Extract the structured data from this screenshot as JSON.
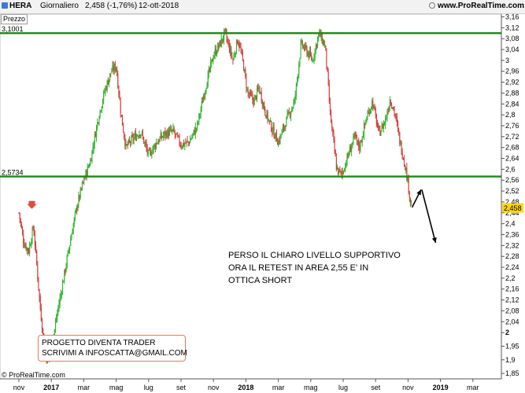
{
  "header": {
    "symbol": "HERA",
    "period": "Giornaliero",
    "quote": "2,458 (-1,76%)",
    "date": "12-ott-2018",
    "site": "www.ProRealTime.com"
  },
  "pane_label": "Prezzo",
  "copyright": "© ProRealTime.com",
  "annotation_main": [
    "PERSO IL CHIARO LIVELLO SUPPORTIVO",
    "ORA IL RETEST IN AREA 2,55 E' IN",
    "OTTICA SHORT"
  ],
  "annotation_box": [
    "PROGETTO DIVENTA TRADER",
    "SCRIVIMI A INFOSCATTA@GMAIL.COM"
  ],
  "colors": {
    "up": "#2db52d",
    "down": "#d0403b",
    "level": "#1a8a1a",
    "price_tag": "#ffd700"
  },
  "chart_data": {
    "type": "candlestick",
    "title": "",
    "y_range": [
      1.83,
      3.17
    ],
    "y_ticks": [
      {
        "v": 3.16,
        "l": "3,16"
      },
      {
        "v": 3.12,
        "l": "3,12"
      },
      {
        "v": 3.08,
        "l": "3,08"
      },
      {
        "v": 3.04,
        "l": "3,04"
      },
      {
        "v": 3.0,
        "l": "3"
      },
      {
        "v": 2.96,
        "l": "2,96"
      },
      {
        "v": 2.92,
        "l": "2,92"
      },
      {
        "v": 2.88,
        "l": "2,88"
      },
      {
        "v": 2.84,
        "l": "2,84"
      },
      {
        "v": 2.8,
        "l": "2,8"
      },
      {
        "v": 2.76,
        "l": "2,76"
      },
      {
        "v": 2.72,
        "l": "2,72"
      },
      {
        "v": 2.68,
        "l": "2,68"
      },
      {
        "v": 2.64,
        "l": "2,64"
      },
      {
        "v": 2.6,
        "l": "2,6"
      },
      {
        "v": 2.56,
        "l": "2,56"
      },
      {
        "v": 2.52,
        "l": "2,52"
      },
      {
        "v": 2.48,
        "l": "2,48"
      },
      {
        "v": 2.44,
        "l": "2,44"
      },
      {
        "v": 2.4,
        "l": "2,4"
      },
      {
        "v": 2.36,
        "l": "2,36"
      },
      {
        "v": 2.32,
        "l": "2,32"
      },
      {
        "v": 2.28,
        "l": "2,28"
      },
      {
        "v": 2.24,
        "l": "2,24"
      },
      {
        "v": 2.2,
        "l": "2,2"
      },
      {
        "v": 2.16,
        "l": "2,16"
      },
      {
        "v": 2.12,
        "l": "2,12"
      },
      {
        "v": 2.08,
        "l": "2,08"
      },
      {
        "v": 2.04,
        "l": "2,04"
      },
      {
        "v": 2.0,
        "l": "2"
      },
      {
        "v": 1.95,
        "l": "1,95"
      },
      {
        "v": 1.9,
        "l": "1,9"
      },
      {
        "v": 1.85,
        "l": "1,85"
      }
    ],
    "x_ticks": [
      {
        "m": 0,
        "l": "nov"
      },
      {
        "m": 2,
        "l": "2017",
        "bold": true
      },
      {
        "m": 4,
        "l": "mar"
      },
      {
        "m": 6,
        "l": "mag"
      },
      {
        "m": 8,
        "l": "lug"
      },
      {
        "m": 10,
        "l": "set"
      },
      {
        "m": 12,
        "l": "nov"
      },
      {
        "m": 14,
        "l": "2018",
        "bold": true
      },
      {
        "m": 16,
        "l": "mar"
      },
      {
        "m": 18,
        "l": "mag"
      },
      {
        "m": 20,
        "l": "lug"
      },
      {
        "m": 22,
        "l": "set"
      },
      {
        "m": 24,
        "l": "nov"
      },
      {
        "m": 26,
        "l": "2019",
        "bold": true
      },
      {
        "m": 28,
        "l": "mar"
      }
    ],
    "levels": [
      {
        "value": 3.1001,
        "label": "3,1001"
      },
      {
        "value": 2.5734,
        "label": "2,5734"
      }
    ],
    "last_price": {
      "value": 2.458,
      "label": "2,458"
    },
    "path": [
      [
        0,
        2.44
      ],
      [
        0.3,
        2.33
      ],
      [
        0.6,
        2.3
      ],
      [
        0.9,
        2.39
      ],
      [
        1.1,
        2.25
      ],
      [
        1.3,
        2.1
      ],
      [
        1.55,
        1.96
      ],
      [
        1.75,
        1.89
      ],
      [
        2.0,
        1.93
      ],
      [
        2.3,
        2.05
      ],
      [
        2.7,
        2.18
      ],
      [
        3.0,
        2.28
      ],
      [
        3.3,
        2.38
      ],
      [
        3.6,
        2.47
      ],
      [
        4.0,
        2.56
      ],
      [
        4.4,
        2.63
      ],
      [
        4.9,
        2.79
      ],
      [
        5.3,
        2.89
      ],
      [
        5.7,
        2.96
      ],
      [
        6.0,
        2.98
      ],
      [
        6.3,
        2.8
      ],
      [
        6.6,
        2.68
      ],
      [
        7.0,
        2.71
      ],
      [
        7.5,
        2.74
      ],
      [
        8.0,
        2.65
      ],
      [
        8.5,
        2.7
      ],
      [
        9.0,
        2.73
      ],
      [
        9.5,
        2.74
      ],
      [
        10.0,
        2.69
      ],
      [
        10.5,
        2.7
      ],
      [
        11.0,
        2.76
      ],
      [
        11.5,
        2.9
      ],
      [
        12.0,
        3.02
      ],
      [
        12.4,
        3.06
      ],
      [
        12.7,
        3.1
      ],
      [
        12.9,
        3.06
      ],
      [
        13.2,
        3.0
      ],
      [
        13.5,
        3.08
      ],
      [
        13.8,
        3.0
      ],
      [
        14.1,
        2.88
      ],
      [
        14.5,
        2.85
      ],
      [
        14.8,
        2.9
      ],
      [
        15.2,
        2.81
      ],
      [
        15.6,
        2.75
      ],
      [
        16.0,
        2.7
      ],
      [
        16.5,
        2.78
      ],
      [
        17.0,
        2.85
      ],
      [
        17.4,
        3.06
      ],
      [
        17.8,
        3.03
      ],
      [
        18.1,
        3.0
      ],
      [
        18.5,
        3.1
      ],
      [
        18.9,
        3.05
      ],
      [
        19.2,
        2.8
      ],
      [
        19.6,
        2.6
      ],
      [
        19.9,
        2.58
      ],
      [
        20.3,
        2.65
      ],
      [
        20.7,
        2.72
      ],
      [
        21.0,
        2.68
      ],
      [
        21.4,
        2.78
      ],
      [
        21.8,
        2.85
      ],
      [
        22.2,
        2.73
      ],
      [
        22.6,
        2.78
      ],
      [
        22.9,
        2.86
      ],
      [
        23.2,
        2.8
      ],
      [
        23.5,
        2.7
      ],
      [
        23.8,
        2.62
      ],
      [
        24.0,
        2.55
      ],
      [
        24.15,
        2.48
      ],
      [
        24.25,
        2.458
      ]
    ],
    "arrows": [
      {
        "from": [
          24.25,
          2.46
        ],
        "to": [
          24.8,
          2.525
        ]
      },
      {
        "from": [
          24.85,
          2.525
        ],
        "to": [
          25.7,
          2.33
        ]
      }
    ],
    "signal_marker": {
      "m": 0.8,
      "value": 2.44
    }
  }
}
